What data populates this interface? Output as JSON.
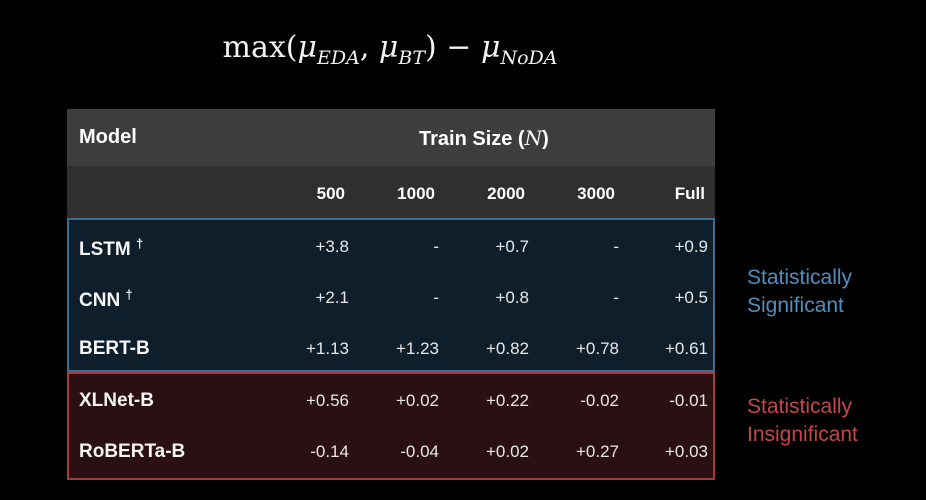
{
  "formula": {
    "prefix": "max(",
    "mu1": "μ",
    "sub1": "EDA",
    "sep": ", ",
    "mu2": "μ",
    "sub2": "BT",
    "mid": ") − ",
    "mu3": "μ",
    "sub3": "NoDA"
  },
  "table": {
    "model_header": "Model",
    "train_size_header": "Train Size",
    "train_size_symbol": "N",
    "columns": [
      "500",
      "1000",
      "2000",
      "3000",
      "Full"
    ],
    "significant_rows": [
      {
        "model": "LSTM",
        "mark": "†",
        "values": [
          "+3.8",
          "-",
          "+0.7",
          "-",
          "+0.9"
        ]
      },
      {
        "model": "CNN",
        "mark": "†",
        "values": [
          "+2.1",
          "-",
          "+0.8",
          "-",
          "+0.5"
        ]
      },
      {
        "model": "BERT-B",
        "mark": "",
        "values": [
          "+1.13",
          "+1.23",
          "+0.82",
          "+0.78",
          "+0.61"
        ]
      }
    ],
    "insignificant_rows": [
      {
        "model": "XLNet-B",
        "mark": "",
        "values": [
          "+0.56",
          "+0.02",
          "+0.22",
          "-0.02",
          "-0.01"
        ]
      },
      {
        "model": "RoBERTa-B",
        "mark": "",
        "values": [
          "-0.14",
          "-0.04",
          "+0.02",
          "+0.27",
          "+0.03"
        ]
      }
    ]
  },
  "labels": {
    "significant_line1": "Statistically",
    "significant_line2": "Significant",
    "insignificant_line1": "Statistically",
    "insignificant_line2": "Insignificant"
  },
  "colors": {
    "significant": "#4f8fc0",
    "insignificant": "#c4474a"
  }
}
